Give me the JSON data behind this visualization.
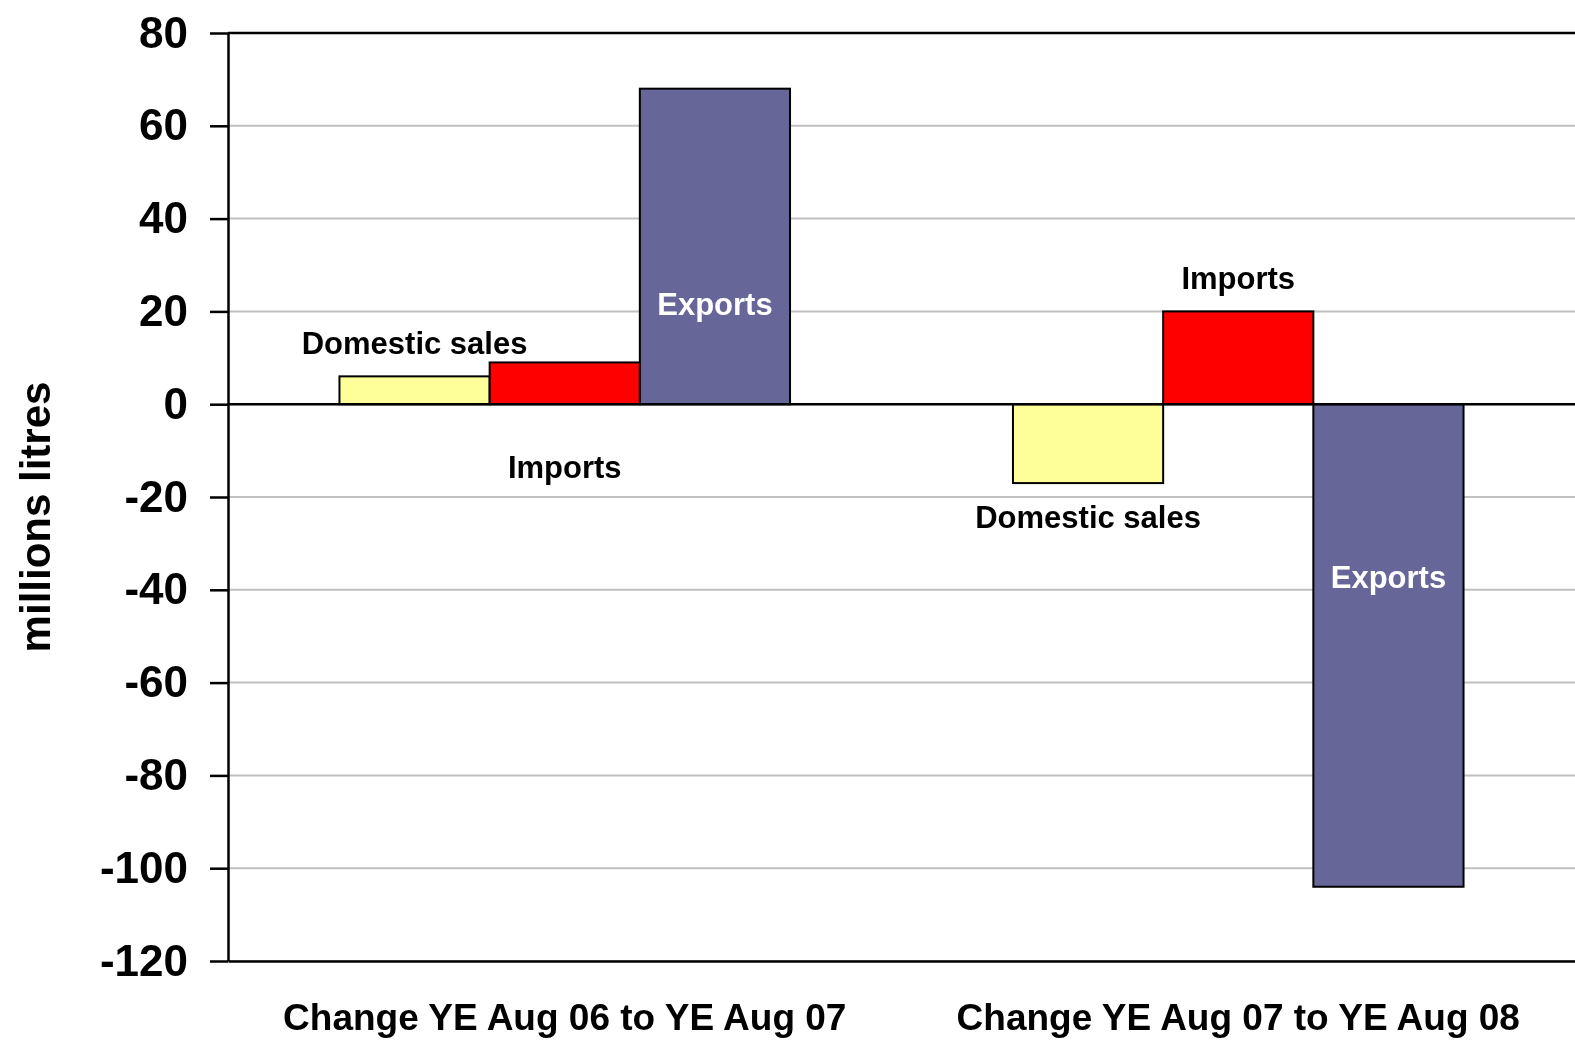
{
  "chart_data": {
    "type": "bar",
    "ylabel": "millions litres",
    "categories": [
      "Change YE Aug 06 to YE Aug 07",
      "Change YE Aug 07 to YE Aug 08"
    ],
    "series": [
      {
        "name": "Domestic sales",
        "color": "#ffff99",
        "values": [
          6,
          -17
        ]
      },
      {
        "name": "Imports",
        "color": "#ff0000",
        "values": [
          9,
          20
        ]
      },
      {
        "name": "Exports",
        "color": "#666699",
        "values": [
          68,
          -104
        ]
      }
    ],
    "ylim": [
      -120,
      80
    ],
    "yticks": [
      -120,
      -100,
      -80,
      -60,
      -40,
      -20,
      0,
      20,
      40,
      60,
      80
    ],
    "grid": "y",
    "legend": false
  }
}
